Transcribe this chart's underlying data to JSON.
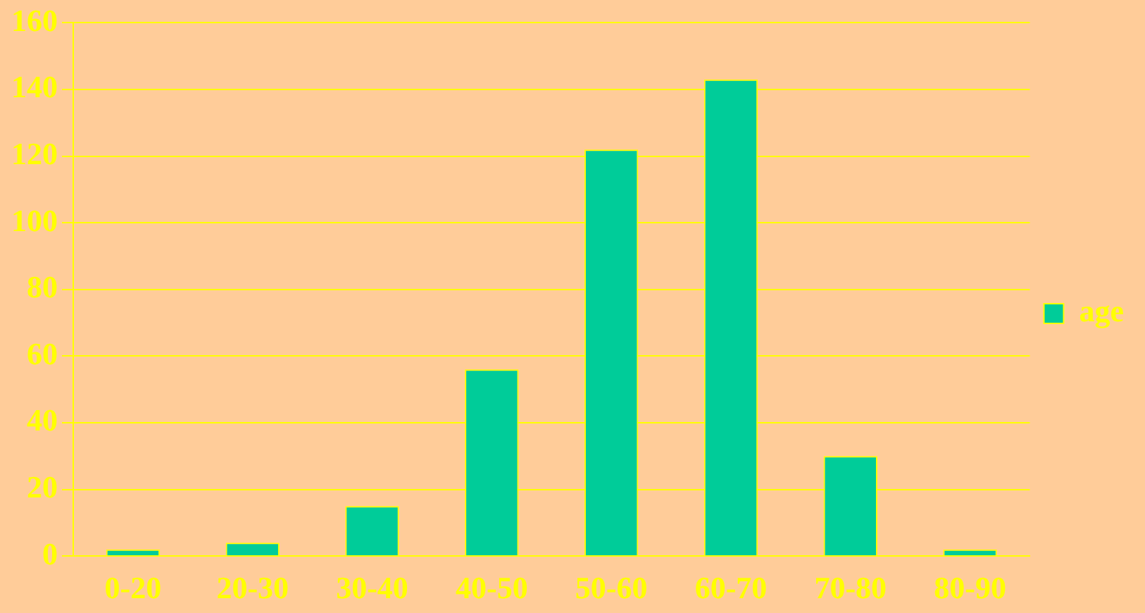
{
  "chart_data": {
    "type": "bar",
    "categories": [
      "0-20",
      "20-30",
      "30-40",
      "40-50",
      "50-60",
      "60-70",
      "70-80",
      "80-90"
    ],
    "series": [
      {
        "name": "age",
        "color": "#00cc99",
        "values": [
          2,
          4,
          15,
          56,
          122,
          143,
          30,
          2
        ]
      }
    ],
    "ylim": [
      0,
      160
    ],
    "yticks": [
      0,
      20,
      40,
      60,
      80,
      100,
      120,
      140,
      160
    ],
    "grid": "y",
    "legend": "right"
  }
}
